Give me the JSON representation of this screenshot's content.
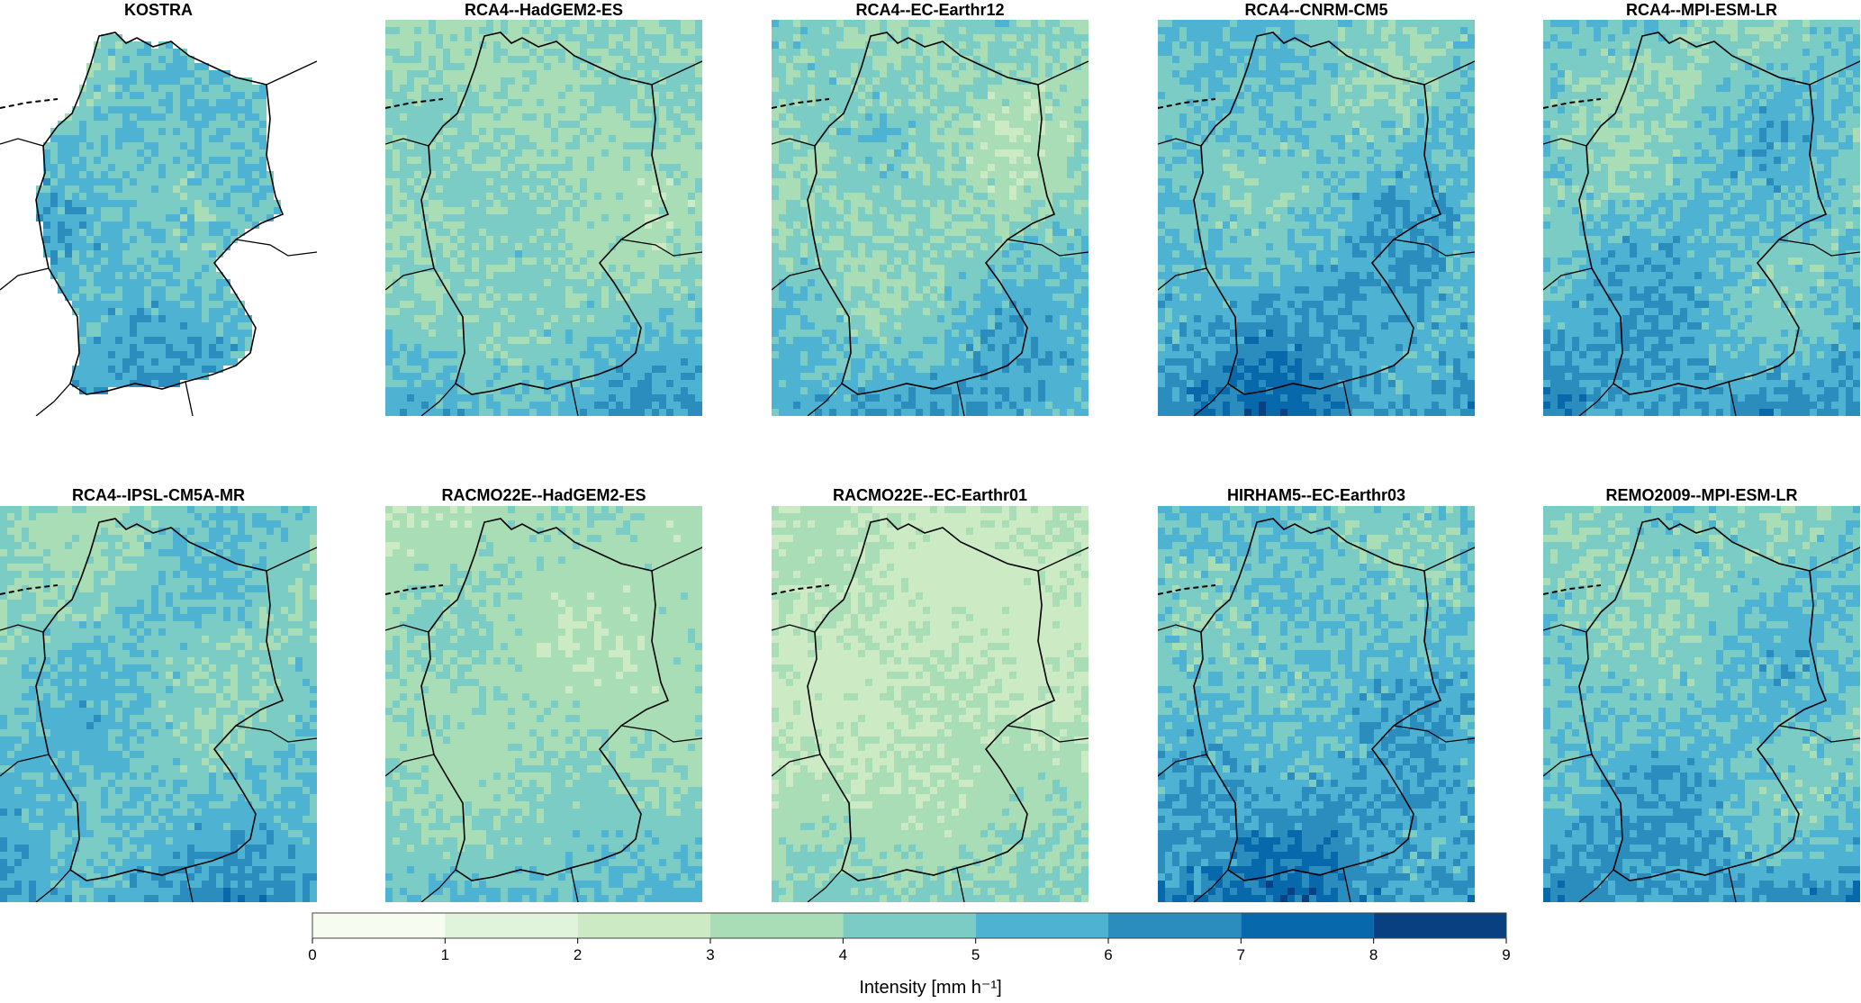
{
  "figure": {
    "panels": [
      {
        "id": "kostra",
        "title": "KOSTRA",
        "mean": 5.0,
        "spread": 1.0,
        "south_gradient": 2.0,
        "masked": true
      },
      {
        "id": "rca4-hadgem2",
        "title": "RCA4--HadGEM2-ES",
        "mean": 4.2,
        "spread": 0.9,
        "south_gradient": 1.8,
        "masked": false
      },
      {
        "id": "rca4-ecearth12",
        "title": "RCA4--EC-Earthr12",
        "mean": 4.4,
        "spread": 1.0,
        "south_gradient": 1.8,
        "masked": false
      },
      {
        "id": "rca4-cnrm",
        "title": "RCA4--CNRM-CM5",
        "mean": 5.2,
        "spread": 1.0,
        "south_gradient": 2.0,
        "masked": false
      },
      {
        "id": "rca4-mpi",
        "title": "RCA4--MPI-ESM-LR",
        "mean": 5.0,
        "spread": 1.0,
        "south_gradient": 1.8,
        "masked": false
      },
      {
        "id": "rca4-ipsl",
        "title": "RCA4--IPSL-CM5A-MR",
        "mean": 4.8,
        "spread": 0.9,
        "south_gradient": 1.8,
        "masked": false
      },
      {
        "id": "racmo-hadgem2",
        "title": "RACMO22E--HadGEM2-ES",
        "mean": 3.9,
        "spread": 0.7,
        "south_gradient": 1.6,
        "masked": false
      },
      {
        "id": "racmo-ecearth01",
        "title": "RACMO22E--EC-Earthr01",
        "mean": 3.2,
        "spread": 0.7,
        "south_gradient": 1.4,
        "masked": false
      },
      {
        "id": "hirham5-ecearth03",
        "title": "HIRHAM5--EC-Earthr03",
        "mean": 5.2,
        "spread": 1.1,
        "south_gradient": 2.2,
        "masked": false
      },
      {
        "id": "remo2009-mpi",
        "title": "REMO2009--MPI-ESM-LR",
        "mean": 4.9,
        "spread": 1.0,
        "south_gradient": 2.0,
        "masked": false
      }
    ],
    "colorbar": {
      "title": "Intensity [mm h⁻¹]",
      "breaks": [
        "0",
        "1",
        "2",
        "3",
        "4",
        "5",
        "6",
        "7",
        "8",
        "9"
      ],
      "colors": [
        "#f7fcf0",
        "#e0f3db",
        "#ccebc5",
        "#a8ddb5",
        "#7bccc4",
        "#4eb3d3",
        "#2b8cbe",
        "#0868ac",
        "#084081"
      ]
    },
    "border_color": "#000000"
  }
}
